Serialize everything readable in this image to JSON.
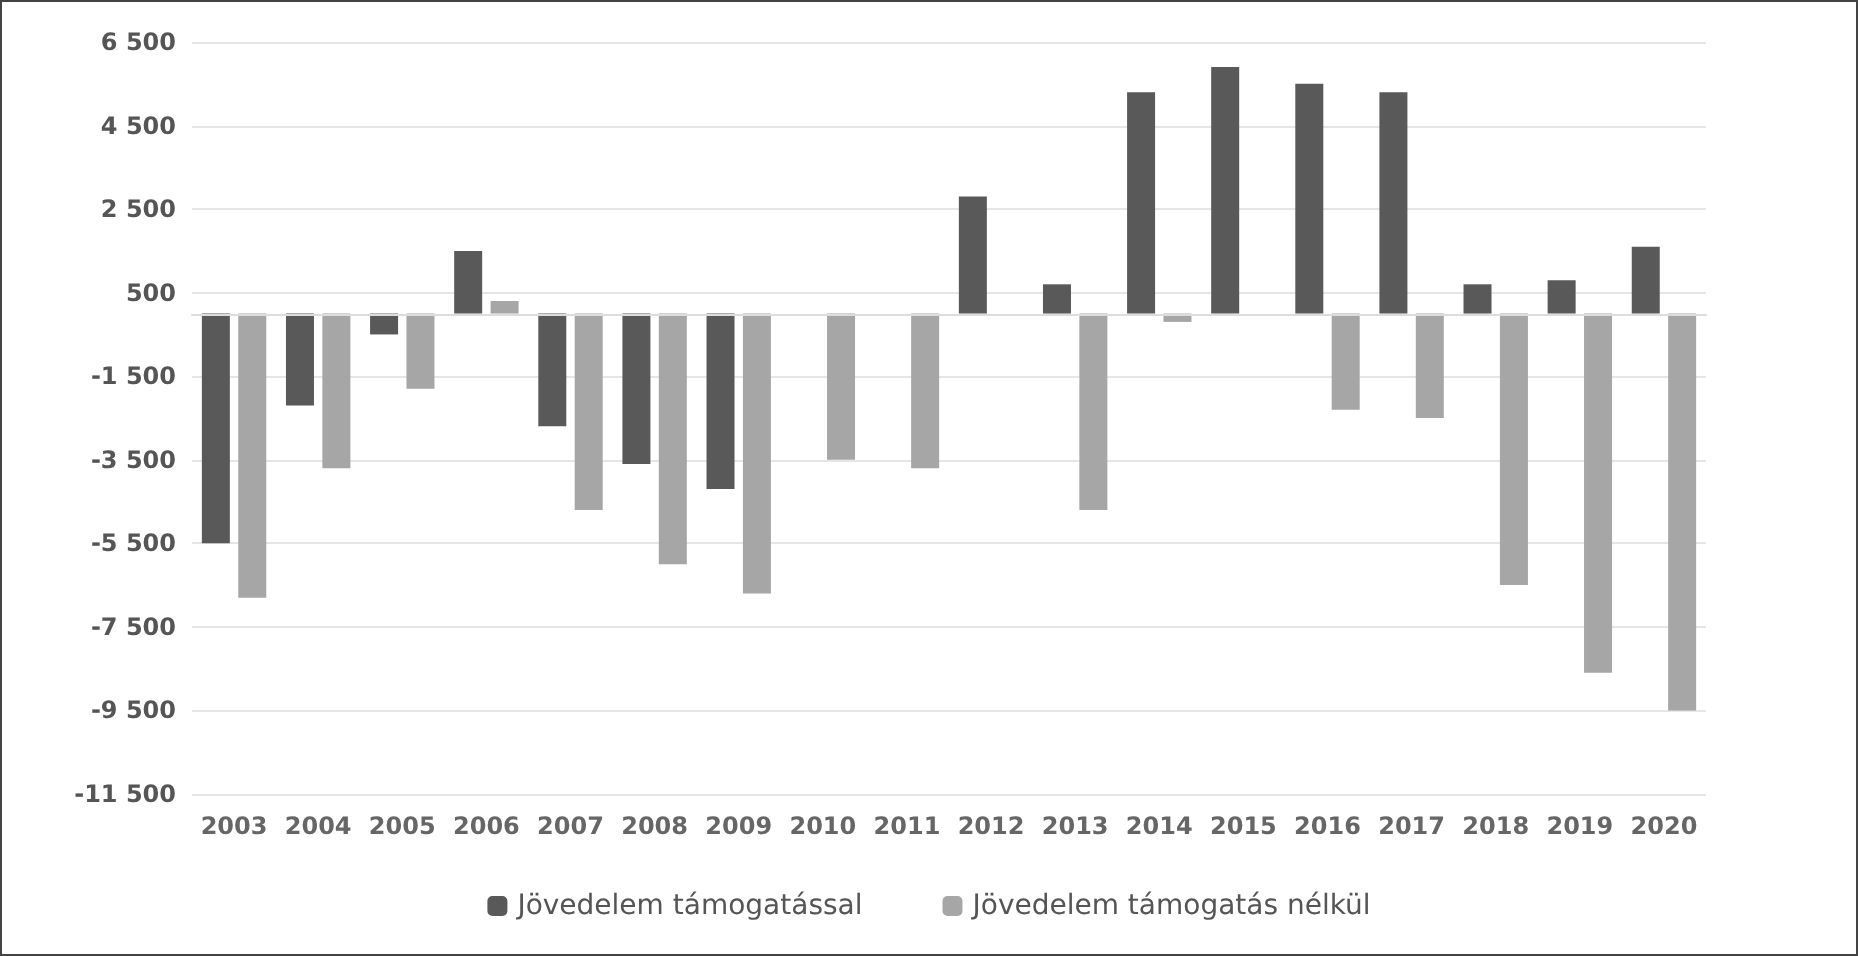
{
  "chart_data": {
    "type": "bar",
    "categories": [
      "2003",
      "2004",
      "2005",
      "2006",
      "2007",
      "2008",
      "2009",
      "2010",
      "2011",
      "2012",
      "2013",
      "2014",
      "2015",
      "2016",
      "2017",
      "2018",
      "2019",
      "2020"
    ],
    "series": [
      {
        "name": "Jövedelem támogatással",
        "color": "#595959",
        "values": [
          -5500,
          -2200,
          -500,
          1500,
          -2700,
          -3600,
          -4200,
          null,
          null,
          2800,
          700,
          5300,
          5900,
          5500,
          5300,
          700,
          800,
          1600
        ]
      },
      {
        "name": "Jövedelem támogatás nélkül",
        "color": "#a6a6a6",
        "values": [
          -6800,
          -3700,
          -1800,
          300,
          -4700,
          -6000,
          -6700,
          -3500,
          -3700,
          null,
          -4700,
          -200,
          null,
          -2300,
          -2500,
          -6500,
          -8600,
          -9500
        ]
      }
    ],
    "ylim": [
      -11500,
      6500
    ],
    "yticks": [
      {
        "value": 6500,
        "label": "6 500"
      },
      {
        "value": 4500,
        "label": "4 500"
      },
      {
        "value": 2500,
        "label": "2 500"
      },
      500,
      {
        "value": -1500,
        "label": "-1 500"
      },
      {
        "value": -3500,
        "label": "-3 500"
      },
      {
        "value": -5500,
        "label": "-5 500"
      },
      {
        "value": -7500,
        "label": "-7 500"
      },
      {
        "value": -9500,
        "label": "-9 500"
      },
      {
        "value": -11500,
        "label": "-11 500"
      }
    ],
    "grid": "y",
    "legend": "bottom"
  }
}
